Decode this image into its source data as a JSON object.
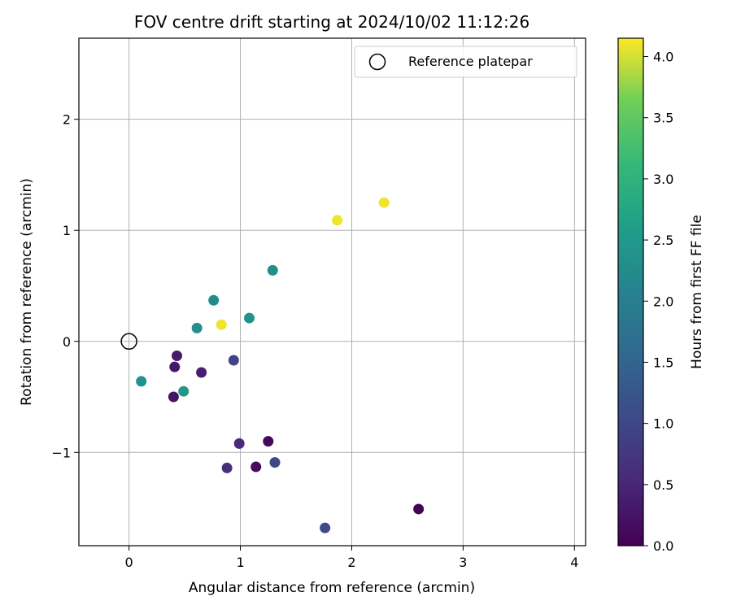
{
  "chart_data": {
    "type": "scatter",
    "title": "FOV centre drift starting at 2024/10/02 11:12:26",
    "xlabel": "Angular distance from reference (arcmin)",
    "ylabel": "Rotation from reference (arcmin)",
    "xlim": [
      -0.45,
      4.1
    ],
    "ylim": [
      -1.84,
      2.73
    ],
    "xticks": [
      0,
      1,
      2,
      3,
      4
    ],
    "xtick_labels": [
      "0",
      "1",
      "2",
      "3",
      "4"
    ],
    "yticks": [
      -1,
      0,
      1,
      2
    ],
    "ytick_labels": [
      "−1",
      "0",
      "1",
      "2"
    ],
    "grid": true,
    "legend": {
      "position": "top-right",
      "entries": [
        "Reference platepar"
      ]
    },
    "reference_point": {
      "x": 0,
      "y": 0,
      "label": "Reference platepar"
    },
    "colorbar": {
      "label": "Hours from first FF file",
      "colormap": "viridis",
      "range": [
        0.0,
        4.15
      ],
      "ticks": [
        0.0,
        0.5,
        1.0,
        1.5,
        2.0,
        2.5,
        3.0,
        3.5,
        4.0
      ],
      "tick_labels": [
        "0.0",
        "0.5",
        "1.0",
        "1.5",
        "2.0",
        "2.5",
        "3.0",
        "3.5",
        "4.0"
      ]
    },
    "points": [
      {
        "x": 2.6,
        "y": -1.51,
        "hours": 0.05
      },
      {
        "x": 1.25,
        "y": -0.9,
        "hours": 0.1
      },
      {
        "x": 1.14,
        "y": -1.13,
        "hours": 0.15
      },
      {
        "x": 0.4,
        "y": -0.5,
        "hours": 0.25
      },
      {
        "x": 0.41,
        "y": -0.23,
        "hours": 0.3
      },
      {
        "x": 0.43,
        "y": -0.13,
        "hours": 0.35
      },
      {
        "x": 0.65,
        "y": -0.28,
        "hours": 0.4
      },
      {
        "x": 0.99,
        "y": -0.92,
        "hours": 0.55
      },
      {
        "x": 0.88,
        "y": -1.14,
        "hours": 0.65
      },
      {
        "x": 0.94,
        "y": -0.17,
        "hours": 0.95
      },
      {
        "x": 1.31,
        "y": -1.09,
        "hours": 1.0
      },
      {
        "x": 1.76,
        "y": -1.68,
        "hours": 1.05
      },
      {
        "x": 0.11,
        "y": -0.36,
        "hours": 2.35
      },
      {
        "x": 0.49,
        "y": -0.45,
        "hours": 2.45
      },
      {
        "x": 0.61,
        "y": 0.12,
        "hours": 2.3
      },
      {
        "x": 0.76,
        "y": 0.37,
        "hours": 2.25
      },
      {
        "x": 1.08,
        "y": 0.21,
        "hours": 2.35
      },
      {
        "x": 1.29,
        "y": 0.64,
        "hours": 2.3
      },
      {
        "x": 0.83,
        "y": 0.15,
        "hours": 4.1
      },
      {
        "x": 1.87,
        "y": 1.09,
        "hours": 4.1
      },
      {
        "x": 2.29,
        "y": 1.25,
        "hours": 4.1
      }
    ]
  }
}
